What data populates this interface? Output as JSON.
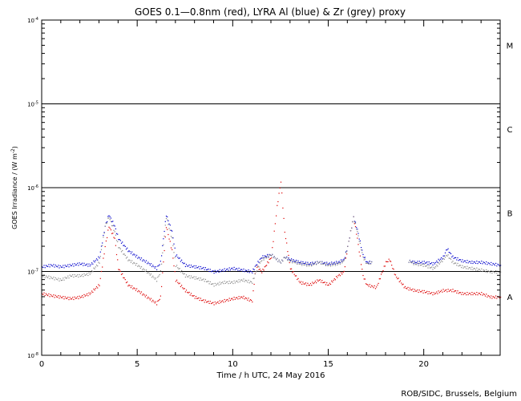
{
  "chart_data": {
    "type": "scatter",
    "title": "GOES 0.1—0.8nm (red), LYRA Al (blue) & Zr (grey) proxy",
    "xlabel": "Time / h UTC, 24 May 2016",
    "ylabel_prefix": "GOES Irradiance / (W m",
    "ylabel_sup": "-2",
    "ylabel_suffix": ")",
    "footer": "ROB/SIDC, Brussels, Belgium",
    "xlim": [
      0,
      24
    ],
    "ylim": [
      1e-08,
      0.0001
    ],
    "yscale": "log",
    "x_ticks": [
      0,
      5,
      10,
      15,
      20
    ],
    "y_ticks": [
      {
        "base": "10",
        "exp": "-8"
      },
      {
        "base": "10",
        "exp": "-7"
      },
      {
        "base": "10",
        "exp": "-6"
      },
      {
        "base": "10",
        "exp": "-5"
      },
      {
        "base": "10",
        "exp": "-4"
      }
    ],
    "threshold_lines": [
      1e-07,
      1e-06,
      1e-05
    ],
    "flare_classes": [
      {
        "label": "A",
        "value": 5e-08
      },
      {
        "label": "B",
        "value": 5e-07
      },
      {
        "label": "C",
        "value": 5e-06
      },
      {
        "label": "M",
        "value": 5e-05
      }
    ],
    "series": [
      {
        "name": "GOES 0.1–0.8nm",
        "color": "#dd0000",
        "x": [
          0,
          0.5,
          1,
          1.5,
          2,
          2.5,
          3,
          3.3,
          3.5,
          3.8,
          4,
          4.5,
          5,
          5.5,
          6,
          6.2,
          6.5,
          6.8,
          7,
          7.5,
          8,
          8.5,
          9,
          9.5,
          10,
          10.5,
          11,
          11.2,
          11.5,
          12,
          12.3,
          12.5,
          12.7,
          13,
          13.5,
          14,
          14.5,
          15,
          15.5,
          15.8,
          16,
          16.3,
          16.5,
          16.8,
          17,
          17.5,
          18,
          18.2,
          18.5,
          19,
          19.5,
          20,
          20.5,
          21,
          21.5,
          22,
          22.5,
          23,
          23.5,
          24
        ],
        "y": [
          5.5e-08,
          5.2e-08,
          5e-08,
          4.8e-08,
          5e-08,
          5.5e-08,
          7e-08,
          2e-07,
          3.5e-07,
          2.5e-07,
          1.1e-07,
          7e-08,
          6e-08,
          5e-08,
          4.2e-08,
          5e-08,
          3.5e-07,
          1.8e-07,
          8e-08,
          6e-08,
          5e-08,
          4.5e-08,
          4.2e-08,
          4.5e-08,
          4.8e-08,
          5e-08,
          4.5e-08,
          1.2e-07,
          1e-07,
          1.5e-07,
          6e-07,
          1.2e-06,
          3e-07,
          1.1e-07,
          7.5e-08,
          7e-08,
          8e-08,
          7e-08,
          9e-08,
          1e-07,
          2e-07,
          4.5e-07,
          2.5e-07,
          9e-08,
          7e-08,
          6.5e-08,
          1.3e-07,
          1.4e-07,
          9e-08,
          6.5e-08,
          6e-08,
          5.8e-08,
          5.5e-08,
          6e-08,
          6e-08,
          5.5e-08,
          5.5e-08,
          5.5e-08,
          5e-08,
          5e-08
        ]
      },
      {
        "name": "LYRA Al",
        "color": "#0000cc",
        "x": [
          0,
          0.5,
          1,
          1.5,
          2,
          2.5,
          3,
          3.3,
          3.5,
          3.8,
          4,
          4.5,
          5,
          5.5,
          6,
          6.2,
          6.5,
          6.8,
          7,
          7.5,
          8,
          8.5,
          9,
          9.5,
          10,
          10.5,
          11,
          11.2,
          11.5,
          12,
          12.3,
          12.5,
          12.7,
          13,
          13.5,
          14,
          14.5,
          15,
          15.5,
          15.8,
          16,
          16.3,
          16.5,
          16.8,
          17,
          17.3,
          19.2,
          19.5,
          20,
          20.5,
          21,
          21.2,
          21.5,
          22,
          22.5,
          23,
          23.5,
          24
        ],
        "y": [
          1.15e-07,
          1.2e-07,
          1.15e-07,
          1.2e-07,
          1.25e-07,
          1.2e-07,
          1.5e-07,
          3.5e-07,
          4.8e-07,
          3.5e-07,
          2.5e-07,
          1.8e-07,
          1.5e-07,
          1.3e-07,
          1.1e-07,
          1.3e-07,
          4.8e-07,
          3e-07,
          1.6e-07,
          1.2e-07,
          1.15e-07,
          1.1e-07,
          1e-07,
          1.05e-07,
          1.1e-07,
          1.05e-07,
          1e-07,
          1.2e-07,
          1.5e-07,
          1.6e-07,
          1.4e-07,
          1.3e-07,
          1.5e-07,
          1.4e-07,
          1.3e-07,
          1.25e-07,
          1.3e-07,
          1.25e-07,
          1.3e-07,
          1.4e-07,
          2e-07,
          4.5e-07,
          3.2e-07,
          1.6e-07,
          1.3e-07,
          1.3e-07,
          1.35e-07,
          1.3e-07,
          1.3e-07,
          1.25e-07,
          1.5e-07,
          1.9e-07,
          1.5e-07,
          1.35e-07,
          1.3e-07,
          1.3e-07,
          1.25e-07,
          1.2e-07
        ]
      },
      {
        "name": "Zr proxy",
        "color": "#888888",
        "x": [
          0,
          0.5,
          1,
          1.5,
          2,
          2.5,
          3,
          3.3,
          3.5,
          3.8,
          4,
          4.5,
          5,
          5.5,
          6,
          6.2,
          6.5,
          6.8,
          7,
          7.5,
          8,
          8.5,
          9,
          9.5,
          10,
          10.5,
          11,
          11.2,
          11.5,
          12,
          12.3,
          12.5,
          12.7,
          13,
          13.5,
          14,
          14.5,
          15,
          15.5,
          15.8,
          16,
          16.3,
          16.5,
          16.8,
          17,
          17.3,
          19.2,
          19.5,
          20,
          20.5,
          21,
          21.2,
          21.5,
          22,
          22.5,
          23,
          23.5,
          24
        ],
        "y": [
          9e-08,
          8.5e-08,
          8e-08,
          9e-08,
          9e-08,
          9.5e-08,
          1.3e-07,
          3.5e-07,
          4.5e-07,
          3e-07,
          2e-07,
          1.4e-07,
          1.2e-07,
          1e-07,
          8e-08,
          1e-07,
          4.5e-07,
          2.5e-07,
          1.2e-07,
          9e-08,
          8.5e-08,
          8e-08,
          7e-08,
          7.5e-08,
          7.5e-08,
          8e-08,
          7.5e-08,
          1e-07,
          1.4e-07,
          1.6e-07,
          1.4e-07,
          1.3e-07,
          1.5e-07,
          1.35e-07,
          1.25e-07,
          1.2e-07,
          1.3e-07,
          1.2e-07,
          1.25e-07,
          1.35e-07,
          2e-07,
          4.5e-07,
          3e-07,
          1.5e-07,
          1.25e-07,
          1.3e-07,
          1.35e-07,
          1.25e-07,
          1.2e-07,
          1.1e-07,
          1.4e-07,
          1.6e-07,
          1.3e-07,
          1.15e-07,
          1.1e-07,
          1.05e-07,
          1e-07,
          1e-07
        ]
      }
    ]
  }
}
